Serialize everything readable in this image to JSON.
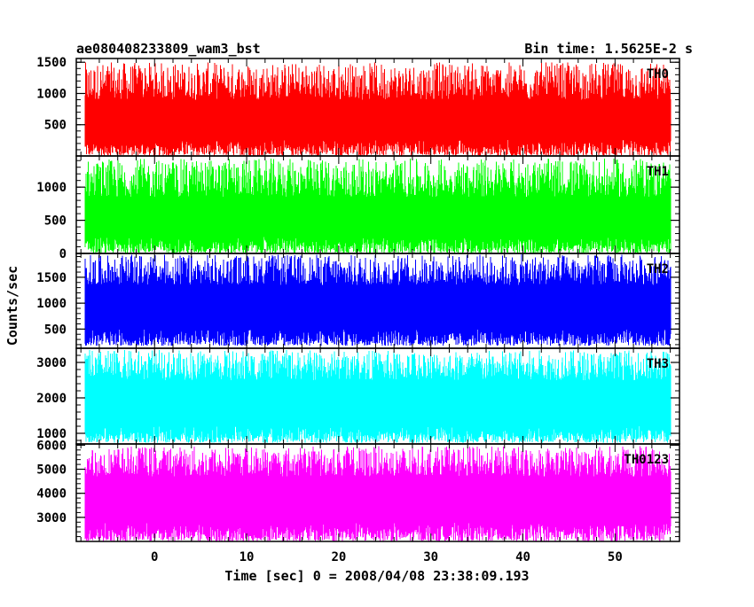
{
  "header": {
    "title": "ae080408233809_wam3_bst",
    "bin_time": "Bin time: 1.5625E-2 s"
  },
  "chart_data": {
    "type": "line",
    "xlabel": "Time [sec] 0 = 2008/04/08 23:38:09.193",
    "ylabel": "Counts/sec",
    "xlim": [
      -8.5,
      57
    ],
    "x_data_range": [
      -7.5,
      56
    ],
    "x_ticks": [
      0,
      10,
      20,
      30,
      40,
      50
    ],
    "bin_time_s": 0.015625,
    "panels": [
      {
        "name": "TH0",
        "color": "#ff0000",
        "ylim": [
          0,
          1560
        ],
        "y_ticks": [
          500,
          1000,
          1500
        ],
        "low_min": 5,
        "low_max": 260,
        "high_min": 900,
        "high_max": 1500
      },
      {
        "name": "TH1",
        "color": "#00ff00",
        "ylim": [
          0,
          1470
        ],
        "y_ticks": [
          0,
          500,
          1000
        ],
        "low_min": 5,
        "low_max": 250,
        "high_min": 850,
        "high_max": 1430
      },
      {
        "name": "TH2",
        "color": "#0000ff",
        "ylim": [
          130,
          1960
        ],
        "y_ticks": [
          500,
          1000,
          1500
        ],
        "low_min": 180,
        "low_max": 500,
        "high_min": 1350,
        "high_max": 1940
      },
      {
        "name": "TH3",
        "color": "#00ffff",
        "ylim": [
          700,
          3400
        ],
        "y_ticks": [
          1000,
          2000,
          3000
        ],
        "low_min": 740,
        "low_max": 1200,
        "high_min": 2500,
        "high_max": 3350
      },
      {
        "name": "TH0123",
        "color": "#ff00ff",
        "ylim": [
          2000,
          6050
        ],
        "y_ticks": [
          3000,
          4000,
          5000,
          6000
        ],
        "low_min": 2010,
        "low_max": 2800,
        "high_min": 4700,
        "high_max": 5960
      }
    ]
  }
}
